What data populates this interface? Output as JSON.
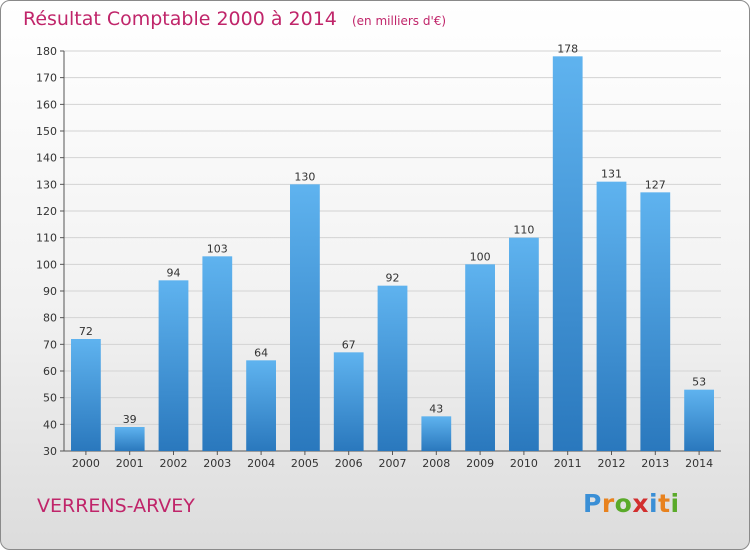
{
  "title": "Résultat Comptable 2000 à 2014",
  "unit_note": "(en milliers d'€)",
  "town": "VERRENS-ARVEY",
  "logo": {
    "text": "Proxiti",
    "letter_colors": [
      "#3a8fd6",
      "#e8821e",
      "#5aaa2a",
      "#d22f2f",
      "#3a8fd6",
      "#e8821e",
      "#5aaa2a"
    ]
  },
  "colors": {
    "accent": "#c0256a",
    "bar_top": "#5fb3ef",
    "bar_bottom": "#2a78bd",
    "grid": "#d3d3d3",
    "axis": "#555555"
  },
  "chart_data": {
    "type": "bar",
    "categories": [
      "2000",
      "2001",
      "2002",
      "2003",
      "2004",
      "2005",
      "2006",
      "2007",
      "2008",
      "2009",
      "2010",
      "2011",
      "2012",
      "2013",
      "2014"
    ],
    "values": [
      72,
      39,
      94,
      103,
      64,
      130,
      67,
      92,
      43,
      100,
      110,
      178,
      131,
      127,
      53
    ],
    "ylim": [
      30,
      180
    ],
    "yticks": [
      30,
      40,
      50,
      60,
      70,
      80,
      90,
      100,
      110,
      120,
      130,
      140,
      150,
      160,
      170,
      180
    ],
    "grid": true,
    "data_labels": true
  }
}
